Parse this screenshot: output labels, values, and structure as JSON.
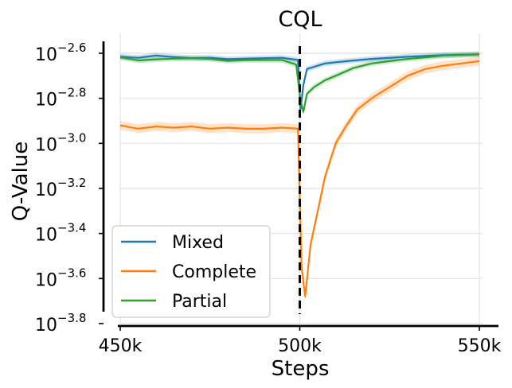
{
  "chart_data": {
    "type": "line",
    "title": "CQL",
    "xlabel": "Steps",
    "ylabel": "Q-Value",
    "yscale": "log",
    "xlim": [
      450000,
      550000
    ],
    "ylim_log10": [
      -3.8,
      -2.54
    ],
    "grid": true,
    "legend_position": "lower-left",
    "x_ticks": [
      {
        "value": 450000,
        "label": "450k"
      },
      {
        "value": 500000,
        "label": "500k"
      },
      {
        "value": 550000,
        "label": "550k"
      }
    ],
    "y_ticks": [
      {
        "exp": -2.6,
        "base": "10",
        "sup": "−2.6"
      },
      {
        "exp": -2.8,
        "base": "10",
        "sup": "−2.8"
      },
      {
        "exp": -3.0,
        "base": "10",
        "sup": "−3.0"
      },
      {
        "exp": -3.2,
        "base": "10",
        "sup": "−3.2"
      },
      {
        "exp": -3.4,
        "base": "10",
        "sup": "−3.4"
      },
      {
        "exp": -3.6,
        "base": "10",
        "sup": "−3.6"
      },
      {
        "exp": -3.8,
        "base": "10",
        "sup": "−3.8"
      }
    ],
    "divider_x": 500000,
    "series": [
      {
        "name": "Mixed",
        "color": "#1f77b4",
        "points_log10": [
          [
            450000,
            -2.615
          ],
          [
            455000,
            -2.62
          ],
          [
            460000,
            -2.61
          ],
          [
            465000,
            -2.617
          ],
          [
            470000,
            -2.622
          ],
          [
            475000,
            -2.62
          ],
          [
            480000,
            -2.626
          ],
          [
            485000,
            -2.624
          ],
          [
            490000,
            -2.622
          ],
          [
            495000,
            -2.62
          ],
          [
            499500,
            -2.63
          ],
          [
            500200,
            -2.85
          ],
          [
            501000,
            -2.74
          ],
          [
            502000,
            -2.67
          ],
          [
            504000,
            -2.66
          ],
          [
            507000,
            -2.645
          ],
          [
            510000,
            -2.64
          ],
          [
            515000,
            -2.632
          ],
          [
            520000,
            -2.625
          ],
          [
            530000,
            -2.615
          ],
          [
            540000,
            -2.608
          ],
          [
            550000,
            -2.605
          ]
        ],
        "band_log10": 0.012
      },
      {
        "name": "Complete",
        "color": "#ff7f0e",
        "points_log10": [
          [
            450000,
            -2.92
          ],
          [
            455000,
            -2.935
          ],
          [
            460000,
            -2.925
          ],
          [
            465000,
            -2.93
          ],
          [
            470000,
            -2.925
          ],
          [
            475000,
            -2.935
          ],
          [
            480000,
            -2.93
          ],
          [
            485000,
            -2.935
          ],
          [
            490000,
            -2.935
          ],
          [
            495000,
            -2.93
          ],
          [
            499500,
            -2.935
          ],
          [
            500500,
            -3.55
          ],
          [
            501500,
            -3.68
          ],
          [
            503000,
            -3.45
          ],
          [
            505000,
            -3.3
          ],
          [
            507000,
            -3.15
          ],
          [
            510000,
            -3.0
          ],
          [
            513000,
            -2.92
          ],
          [
            516000,
            -2.85
          ],
          [
            520000,
            -2.8
          ],
          [
            525000,
            -2.75
          ],
          [
            530000,
            -2.7
          ],
          [
            535000,
            -2.67
          ],
          [
            540000,
            -2.655
          ],
          [
            545000,
            -2.645
          ],
          [
            550000,
            -2.635
          ]
        ],
        "band_log10": 0.02
      },
      {
        "name": "Partial",
        "color": "#2ca02c",
        "points_log10": [
          [
            450000,
            -2.618
          ],
          [
            455000,
            -2.632
          ],
          [
            460000,
            -2.627
          ],
          [
            465000,
            -2.624
          ],
          [
            470000,
            -2.622
          ],
          [
            475000,
            -2.625
          ],
          [
            480000,
            -2.634
          ],
          [
            485000,
            -2.63
          ],
          [
            490000,
            -2.63
          ],
          [
            495000,
            -2.63
          ],
          [
            499000,
            -2.65
          ],
          [
            500200,
            -2.81
          ],
          [
            501000,
            -2.86
          ],
          [
            502000,
            -2.78
          ],
          [
            504000,
            -2.75
          ],
          [
            507000,
            -2.72
          ],
          [
            510000,
            -2.7
          ],
          [
            515000,
            -2.665
          ],
          [
            520000,
            -2.645
          ],
          [
            525000,
            -2.635
          ],
          [
            530000,
            -2.625
          ],
          [
            535000,
            -2.618
          ],
          [
            540000,
            -2.61
          ],
          [
            550000,
            -2.605
          ]
        ],
        "band_log10": 0.012
      }
    ]
  }
}
